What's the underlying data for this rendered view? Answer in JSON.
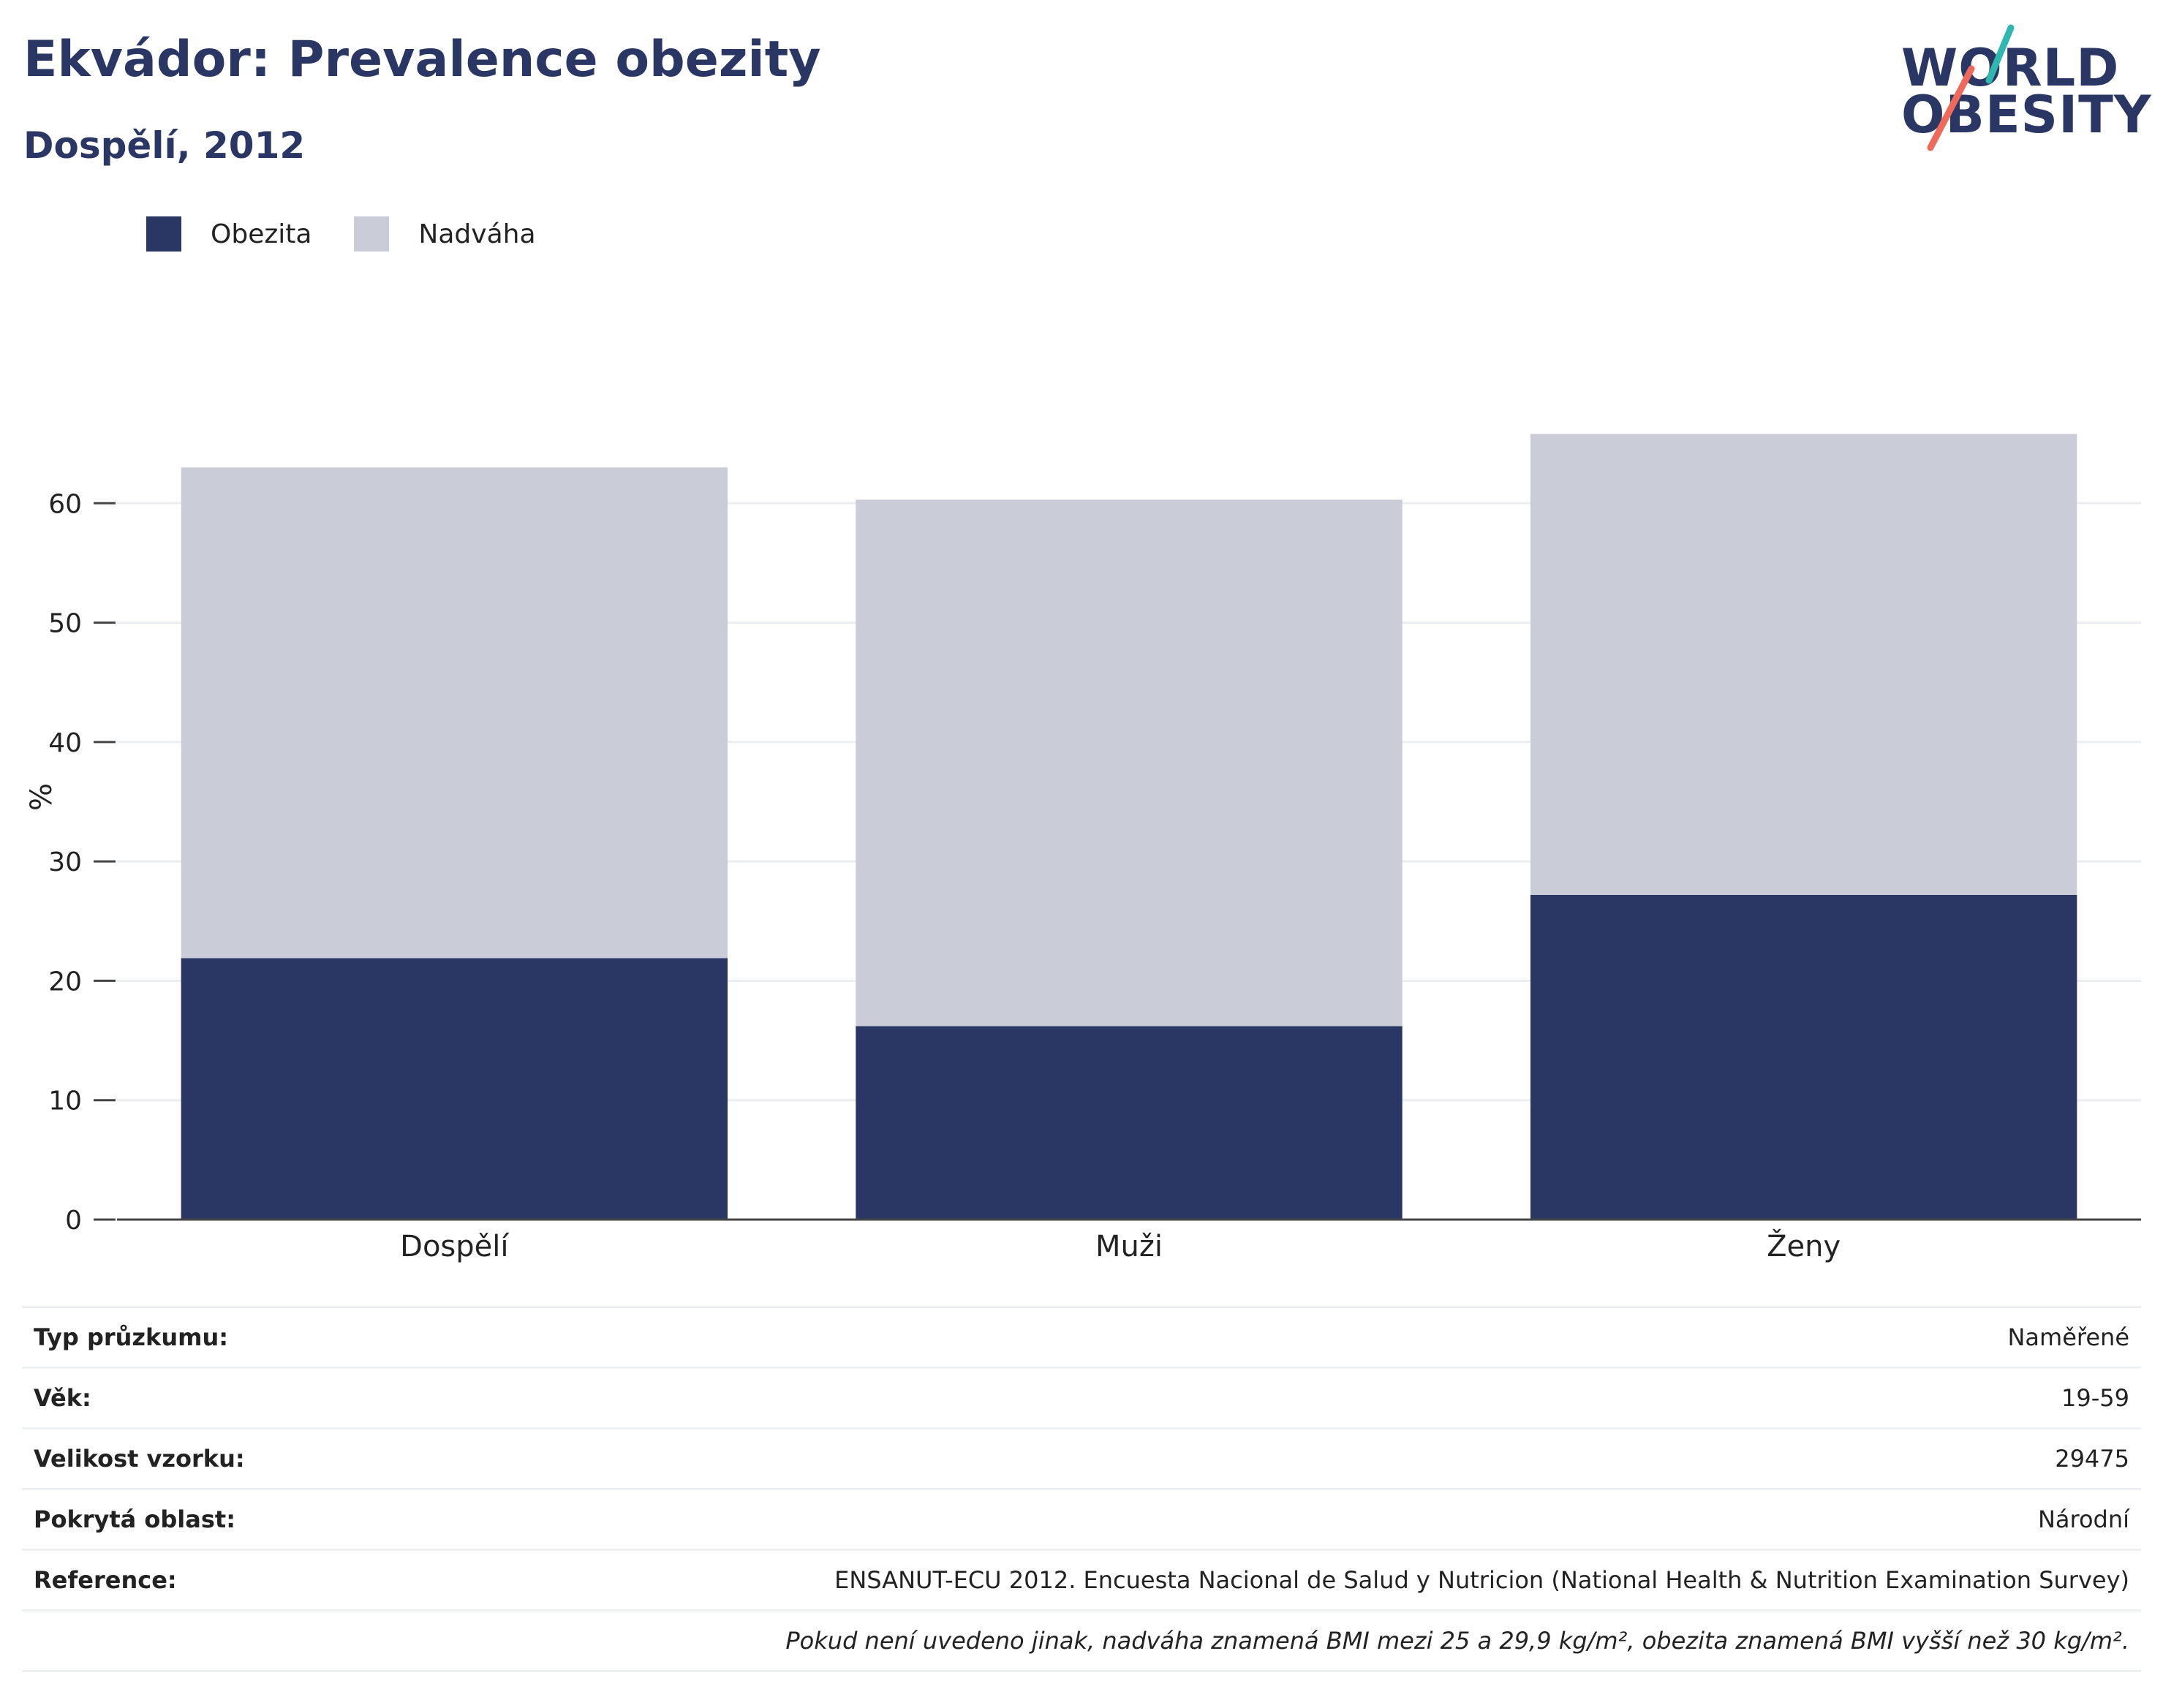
{
  "header": {
    "title": "Ekvádor: Prevalence obezity",
    "subtitle": "Dospělí, 2012"
  },
  "logo": {
    "line1": "WORLD",
    "line2": "OBESITY"
  },
  "colors": {
    "obesity": "#2a3764",
    "overweight": "#cacdd8",
    "text": "#2a3764",
    "accent_teal": "#2fb7b0",
    "accent_coral": "#ef6a5a"
  },
  "chart_data": {
    "type": "bar",
    "stacked": true,
    "categories": [
      "Dospělí",
      "Muži",
      "Ženy"
    ],
    "series": [
      {
        "name": "Obezita",
        "values": [
          21.9,
          16.2,
          27.2
        ],
        "color": "#2a3764"
      },
      {
        "name": "Nadváha",
        "values": [
          41.1,
          44.1,
          38.6
        ],
        "color": "#cacdd8"
      }
    ],
    "ylabel": "%",
    "yticks": [
      0,
      10,
      20,
      30,
      40,
      50,
      60
    ],
    "ylim": [
      0,
      70
    ],
    "grid": true,
    "legend": "top-left"
  },
  "info": {
    "rows": [
      {
        "label": "Typ průzkumu:",
        "value": "Naměřené"
      },
      {
        "label": "Věk:",
        "value": "19-59"
      },
      {
        "label": "Velikost vzorku:",
        "value": "29475"
      },
      {
        "label": "Pokrytá oblast:",
        "value": "Národní"
      },
      {
        "label": "Reference:",
        "value": "ENSANUT-ECU 2012. Encuesta Nacional de Salud y Nutricion (National Health & Nutrition Examination Survey)"
      }
    ],
    "note": "Pokud není uvedeno jinak, nadváha znamená BMI mezi 25 a 29,9 kg/m², obezita znamená BMI vyšší než 30 kg/m²."
  }
}
